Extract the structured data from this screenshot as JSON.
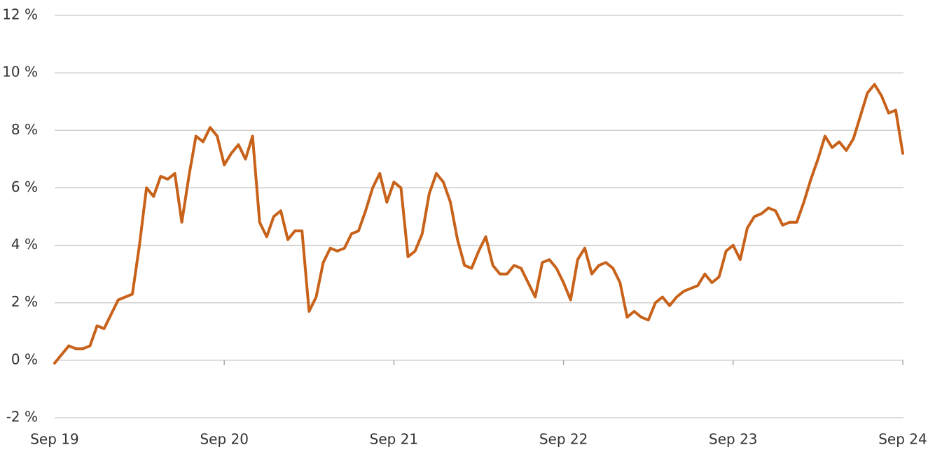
{
  "chart_data": {
    "type": "line",
    "categories": [
      "Sep 19",
      null,
      null,
      null,
      null,
      null,
      null,
      null,
      null,
      null,
      null,
      null,
      null,
      null,
      null,
      null,
      null,
      null,
      null,
      null,
      null,
      null,
      null,
      null,
      "Sep 20",
      null,
      null,
      null,
      null,
      null,
      null,
      null,
      null,
      null,
      null,
      null,
      null,
      null,
      null,
      null,
      null,
      null,
      null,
      null,
      null,
      null,
      null,
      null,
      "Sep 21",
      null,
      null,
      null,
      null,
      null,
      null,
      null,
      null,
      null,
      null,
      null,
      null,
      null,
      null,
      null,
      null,
      null,
      null,
      null,
      null,
      null,
      null,
      null,
      "Sep 22",
      null,
      null,
      null,
      null,
      null,
      null,
      null,
      null,
      null,
      null,
      null,
      null,
      null,
      null,
      null,
      null,
      null,
      null,
      null,
      null,
      null,
      null,
      null,
      "Sep 23",
      null,
      null,
      null,
      null,
      null,
      null,
      null,
      null,
      null,
      null,
      null,
      null,
      null,
      null,
      null,
      null,
      null,
      null,
      null,
      null,
      null,
      null,
      null,
      "Sep 24"
    ],
    "series": [
      {
        "color": "#c8621a",
        "values": [
          -0.1,
          0.2,
          0.5,
          0.4,
          0.4,
          0.5,
          1.2,
          1.1,
          1.6,
          2.1,
          2.2,
          2.3,
          4.0,
          6.0,
          5.7,
          6.4,
          6.3,
          6.5,
          4.8,
          6.4,
          7.8,
          7.6,
          8.1,
          7.8,
          6.8,
          7.2,
          7.5,
          7.0,
          7.8,
          4.8,
          4.3,
          5.0,
          5.2,
          4.2,
          4.5,
          4.5,
          1.7,
          2.2,
          3.4,
          3.9,
          3.8,
          3.9,
          4.4,
          4.5,
          5.2,
          6.0,
          6.5,
          5.5,
          6.2,
          6.0,
          3.6,
          3.8,
          4.4,
          5.8,
          6.5,
          6.2,
          5.5,
          4.2,
          3.3,
          3.2,
          3.8,
          4.3,
          3.3,
          3.0,
          3.0,
          3.3,
          3.2,
          2.7,
          2.2,
          3.4,
          3.5,
          3.2,
          2.7,
          2.1,
          3.5,
          3.9,
          3.0,
          3.3,
          3.4,
          3.2,
          2.7,
          1.5,
          1.7,
          1.5,
          1.4,
          2.0,
          2.2,
          1.9,
          2.2,
          2.4,
          2.5,
          2.6,
          3.0,
          2.7,
          2.9,
          3.8,
          4.0,
          3.5,
          4.6,
          5.0,
          5.1,
          5.3,
          5.2,
          4.7,
          4.8,
          4.8,
          5.5,
          6.3,
          7.0,
          7.8,
          7.4,
          7.6,
          7.3,
          7.7,
          8.5,
          9.3,
          9.6,
          9.2,
          8.6,
          8.7,
          7.2
        ]
      }
    ],
    "ylim": [
      -2,
      12
    ],
    "yticks": [
      {
        "value": -2,
        "label": "-2 %"
      },
      {
        "value": 0,
        "label": "0 %"
      },
      {
        "value": 2,
        "label": "2 %"
      },
      {
        "value": 4,
        "label": "4 %"
      },
      {
        "value": 6,
        "label": "6 %"
      },
      {
        "value": 8,
        "label": "8 %"
      },
      {
        "value": 10,
        "label": "10 %"
      },
      {
        "value": 12,
        "label": "12 %"
      }
    ],
    "grid": true
  }
}
